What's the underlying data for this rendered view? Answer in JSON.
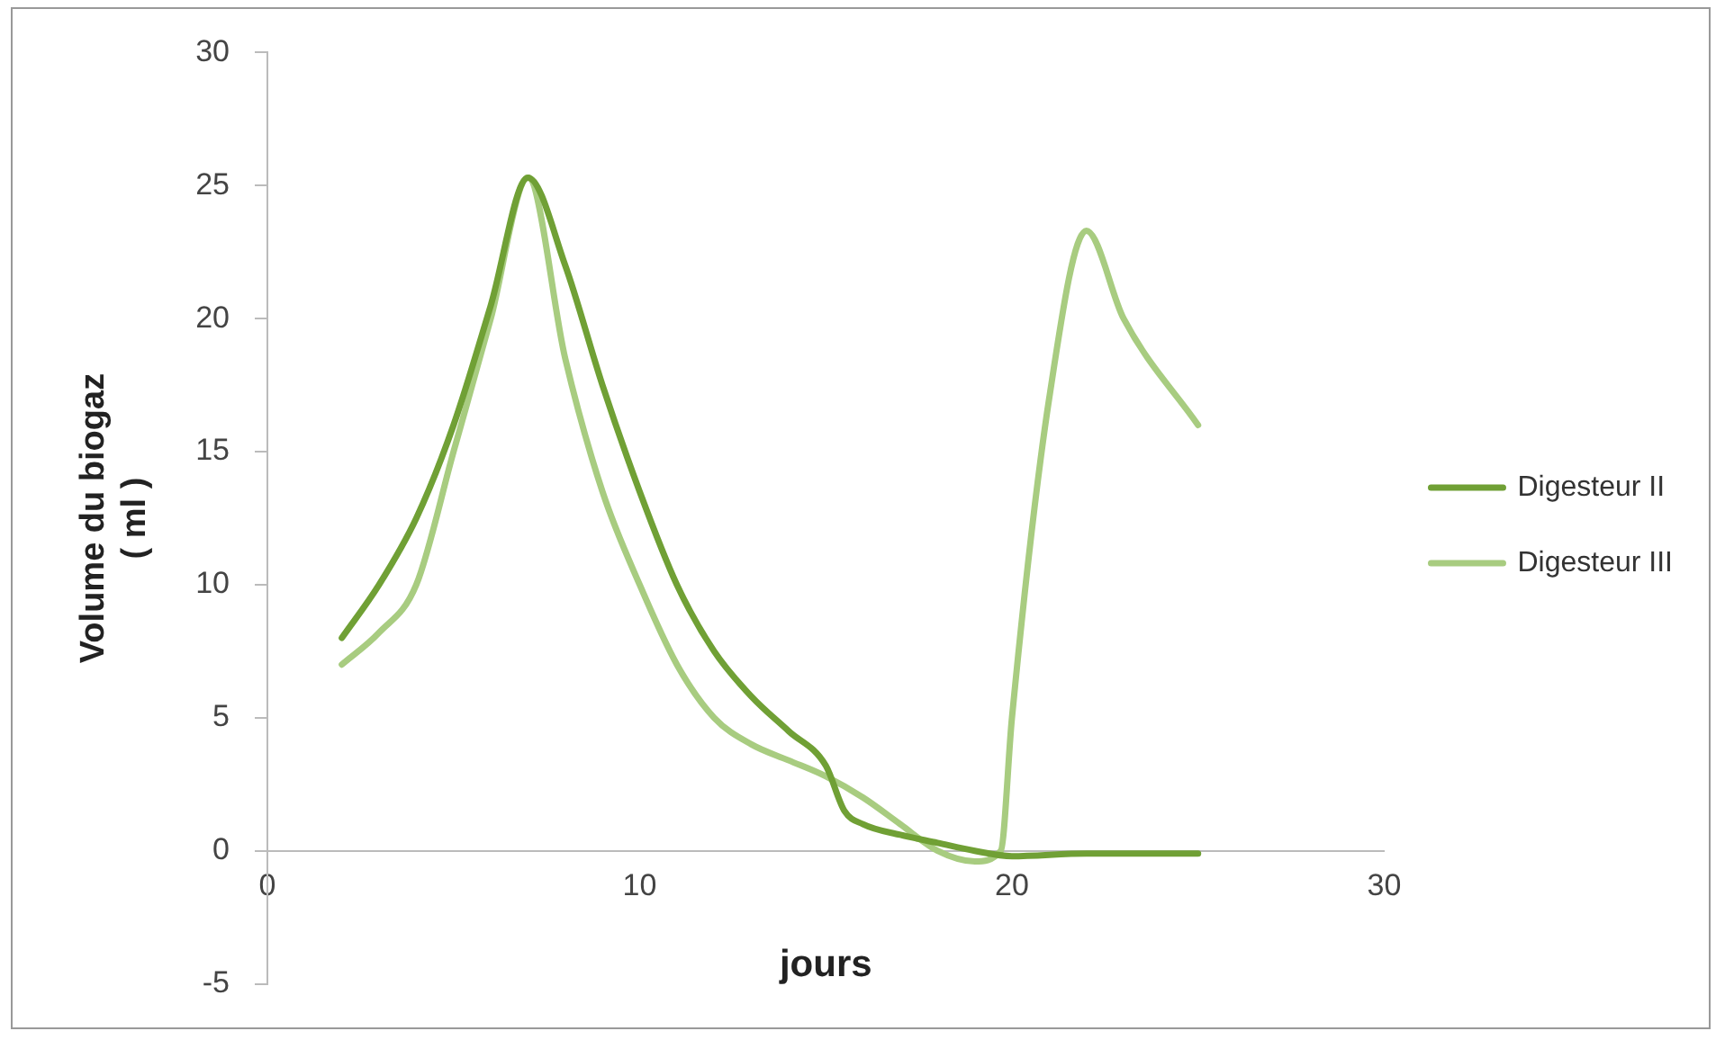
{
  "chart_data": {
    "type": "line",
    "xlabel": "jours",
    "ylabel": "Volume du biogaz\n( ml )",
    "xlim": [
      0,
      30
    ],
    "xticks": [
      0,
      10,
      20,
      30
    ],
    "ylim": [
      -5,
      30
    ],
    "yticks": [
      -5,
      0,
      5,
      10,
      15,
      20,
      25,
      30
    ],
    "grid": false,
    "legend": "right",
    "marker": "none",
    "line_style": "solid",
    "series": [
      {
        "name": "Digesteur II",
        "color": "#70a035",
        "x": [
          2,
          3,
          4,
          5,
          6,
          7,
          8,
          9,
          10,
          11,
          12,
          13,
          14,
          15,
          15.5,
          16,
          17,
          18,
          19,
          20,
          22,
          25
        ],
        "values": [
          8,
          10,
          12.5,
          16,
          20.5,
          25.3,
          22,
          17.5,
          13.5,
          10,
          7.5,
          5.8,
          4.5,
          3.2,
          1.5,
          1,
          0.6,
          0.3,
          0,
          -0.2,
          -0.1,
          -0.1
        ]
      },
      {
        "name": "Digesteur III",
        "color": "#a8cc80",
        "x": [
          2,
          3,
          4,
          5,
          6,
          7,
          8,
          9,
          10,
          11,
          12,
          13,
          14,
          15,
          16,
          17,
          18,
          19,
          19.7,
          20,
          21,
          22,
          23,
          25
        ],
        "values": [
          7,
          8.2,
          10,
          15,
          20,
          25.3,
          18.5,
          13.5,
          10,
          7,
          5,
          4,
          3.4,
          2.8,
          2,
          1,
          0,
          -0.4,
          0,
          5,
          17,
          23.3,
          20,
          16
        ]
      }
    ]
  }
}
